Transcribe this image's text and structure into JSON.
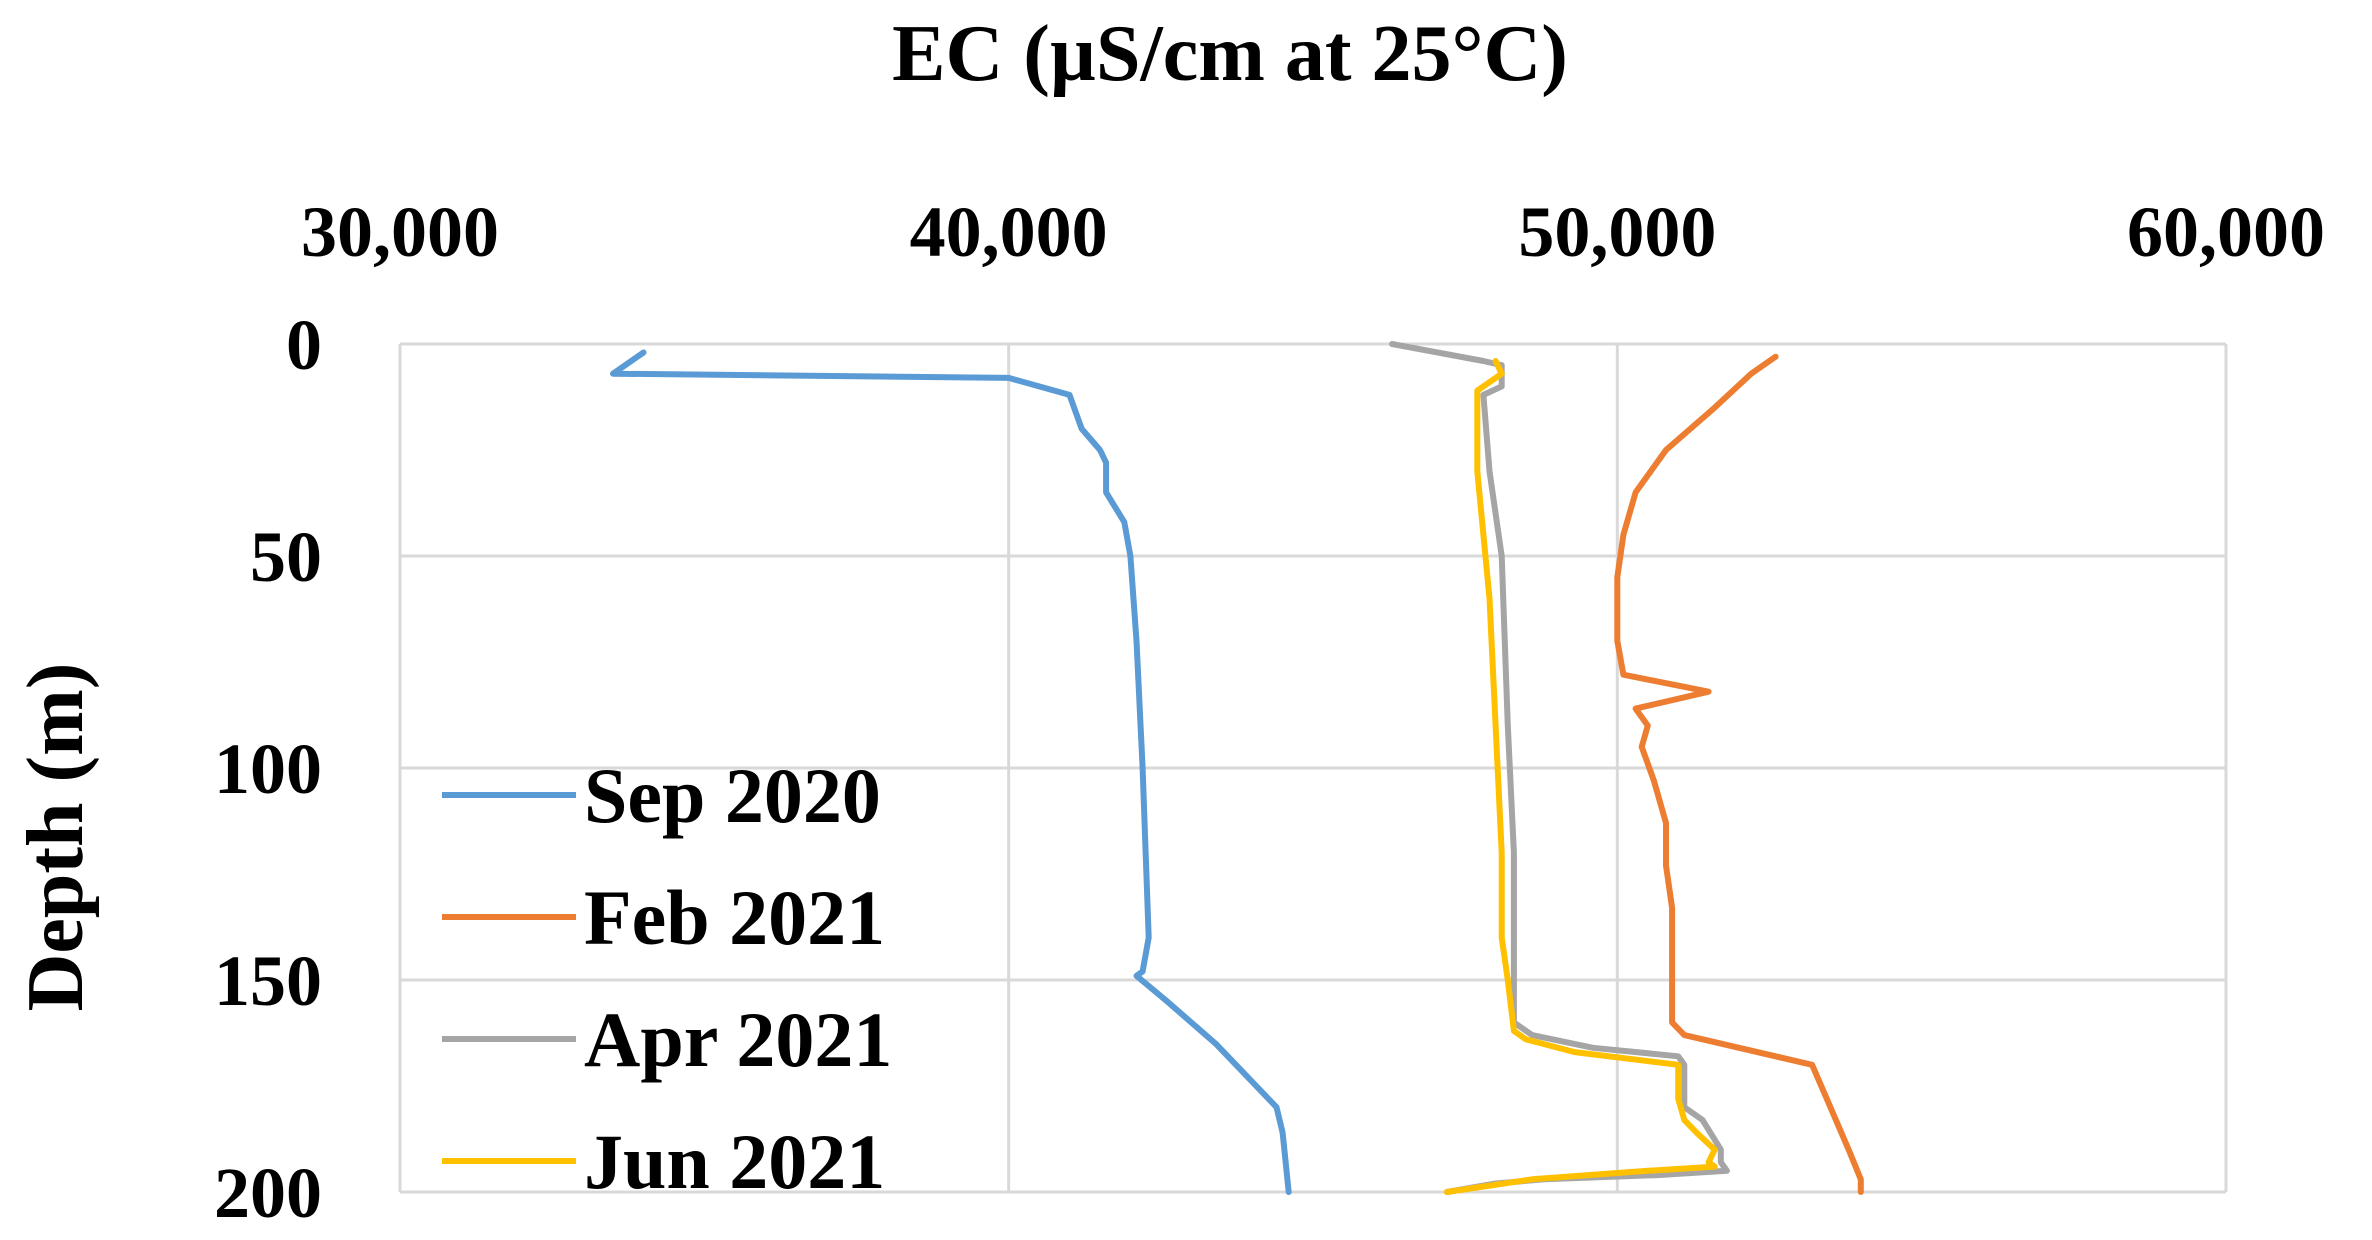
{
  "colors": {
    "background": "#ffffff",
    "grid": "#d9d9d9",
    "axis_text": "#000000",
    "sep_2020": "#5b9bd5",
    "feb_2021": "#ed7d31",
    "apr_2021": "#a5a5a5",
    "jun_2021": "#ffc000"
  },
  "chart_data": {
    "type": "line",
    "orientation": "depth-profile",
    "title": "EC (µS/cm at 25°C)",
    "xlabel": "EC (µS/cm at 25°C)",
    "ylabel": "Depth (m)",
    "x_axis_position": "top",
    "y_inverted": true,
    "xlim": [
      30000,
      60000
    ],
    "ylim": [
      0,
      200
    ],
    "x_ticks": [
      30000,
      40000,
      50000,
      60000
    ],
    "x_tick_labels": [
      "30,000",
      "40,000",
      "50,000",
      "60,000"
    ],
    "y_ticks": [
      0,
      50,
      100,
      150,
      200
    ],
    "y_tick_labels": [
      "0",
      "50",
      "100",
      "150",
      "200"
    ],
    "grid": true,
    "legend_position": "bottom-left (inside plot)",
    "series": [
      {
        "name": "Sep 2020",
        "color": "#5b9bd5",
        "points": [
          [
            34000,
            2
          ],
          [
            33500,
            7
          ],
          [
            40000,
            8
          ],
          [
            41000,
            12
          ],
          [
            41200,
            20
          ],
          [
            41500,
            25
          ],
          [
            41600,
            28
          ],
          [
            41600,
            35
          ],
          [
            41900,
            42
          ],
          [
            42000,
            50
          ],
          [
            42100,
            70
          ],
          [
            42200,
            100
          ],
          [
            42300,
            140
          ],
          [
            42200,
            148
          ],
          [
            42100,
            149
          ],
          [
            42600,
            155
          ],
          [
            43400,
            165
          ],
          [
            44400,
            180
          ],
          [
            44500,
            186
          ],
          [
            44600,
            200
          ]
        ]
      },
      {
        "name": "Feb 2021",
        "color": "#ed7d31",
        "points": [
          [
            52600,
            3
          ],
          [
            52200,
            7
          ],
          [
            51600,
            15
          ],
          [
            50800,
            25
          ],
          [
            50300,
            35
          ],
          [
            50100,
            45
          ],
          [
            50000,
            55
          ],
          [
            50000,
            70
          ],
          [
            50100,
            78
          ],
          [
            51500,
            82
          ],
          [
            50300,
            86
          ],
          [
            50500,
            90
          ],
          [
            50400,
            95
          ],
          [
            50600,
            103
          ],
          [
            50800,
            113
          ],
          [
            50800,
            123
          ],
          [
            50900,
            133
          ],
          [
            50900,
            160
          ],
          [
            51100,
            163
          ],
          [
            53200,
            170
          ],
          [
            53500,
            180
          ],
          [
            53800,
            190
          ],
          [
            54000,
            197
          ],
          [
            54000,
            200
          ]
        ]
      },
      {
        "name": "Apr 2021",
        "color": "#a5a5a5",
        "points": [
          [
            46300,
            0
          ],
          [
            47800,
            4
          ],
          [
            48100,
            5
          ],
          [
            48100,
            10
          ],
          [
            47800,
            12
          ],
          [
            47900,
            30
          ],
          [
            48100,
            50
          ],
          [
            48200,
            90
          ],
          [
            48300,
            120
          ],
          [
            48300,
            160
          ],
          [
            48600,
            163
          ],
          [
            49600,
            166
          ],
          [
            51000,
            168
          ],
          [
            51100,
            170
          ],
          [
            51100,
            180
          ],
          [
            51400,
            183
          ],
          [
            51700,
            190
          ],
          [
            51700,
            193
          ],
          [
            51800,
            195
          ],
          [
            50700,
            196
          ],
          [
            48800,
            197
          ],
          [
            48000,
            198
          ],
          [
            47200,
            200
          ]
        ]
      },
      {
        "name": "Jun 2021",
        "color": "#ffc000",
        "points": [
          [
            48000,
            4
          ],
          [
            48100,
            7
          ],
          [
            47700,
            11
          ],
          [
            47700,
            15
          ],
          [
            47700,
            30
          ],
          [
            47800,
            45
          ],
          [
            47900,
            60
          ],
          [
            48000,
            90
          ],
          [
            48100,
            120
          ],
          [
            48100,
            140
          ],
          [
            48200,
            150
          ],
          [
            48300,
            162
          ],
          [
            48500,
            164
          ],
          [
            49300,
            167
          ],
          [
            51000,
            170
          ],
          [
            51000,
            178
          ],
          [
            51100,
            183
          ],
          [
            51300,
            186
          ],
          [
            51600,
            190
          ],
          [
            51500,
            193
          ],
          [
            51600,
            194
          ],
          [
            50500,
            195
          ],
          [
            48600,
            197
          ],
          [
            47200,
            200
          ]
        ]
      }
    ]
  }
}
